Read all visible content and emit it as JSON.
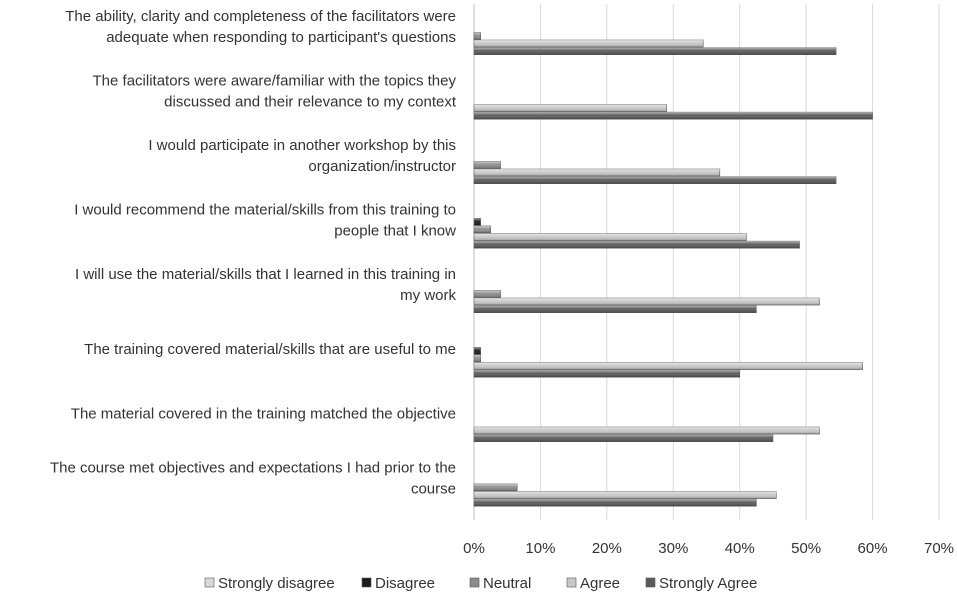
{
  "chart_data": {
    "type": "bar",
    "orientation": "horizontal",
    "title": "",
    "xlabel": "",
    "ylabel": "",
    "xlim": [
      0,
      0.7
    ],
    "x_ticks": [
      "0%",
      "10%",
      "20%",
      "30%",
      "40%",
      "50%",
      "60%",
      "70%"
    ],
    "grid": true,
    "legend_position": "bottom",
    "categories": [
      [
        "The ability, clarity and completeness of the facilitators were",
        "adequate when responding to participant's questions"
      ],
      [
        "The facilitators were aware/familiar with the topics they",
        "discussed and their relevance to my context"
      ],
      [
        "I would participate in another workshop by this",
        "organization/instructor"
      ],
      [
        "I would recommend the material/skills from this training to",
        "people that I know"
      ],
      [
        "I will use the material/skills that I learned in this training in",
        "my work"
      ],
      [
        "The training covered material/skills that are useful to me"
      ],
      [
        "The material covered in the training matched the objective"
      ],
      [
        "The course met objectives and expectations I had prior to the",
        "course"
      ]
    ],
    "series": [
      {
        "name": "Strongly disagree",
        "color": "#d9d9d9",
        "values": [
          0,
          0,
          0,
          0,
          0,
          0,
          0,
          0
        ]
      },
      {
        "name": "Disagree",
        "color": "#1a1a1a",
        "values": [
          0,
          0,
          0,
          0.01,
          0,
          0.01,
          0,
          0
        ]
      },
      {
        "name": "Neutral",
        "color": "#8c8c8c",
        "values": [
          0.01,
          0,
          0.04,
          0.025,
          0.04,
          0.01,
          0,
          0.065
        ]
      },
      {
        "name": "Agree",
        "color": "#c8c8c8",
        "values": [
          0.345,
          0.29,
          0.37,
          0.41,
          0.52,
          0.585,
          0.52,
          0.455
        ]
      },
      {
        "name": "Strongly Agree",
        "color": "#595959",
        "values": [
          0.545,
          0.6,
          0.545,
          0.49,
          0.425,
          0.4,
          0.45,
          0.425
        ]
      }
    ]
  }
}
